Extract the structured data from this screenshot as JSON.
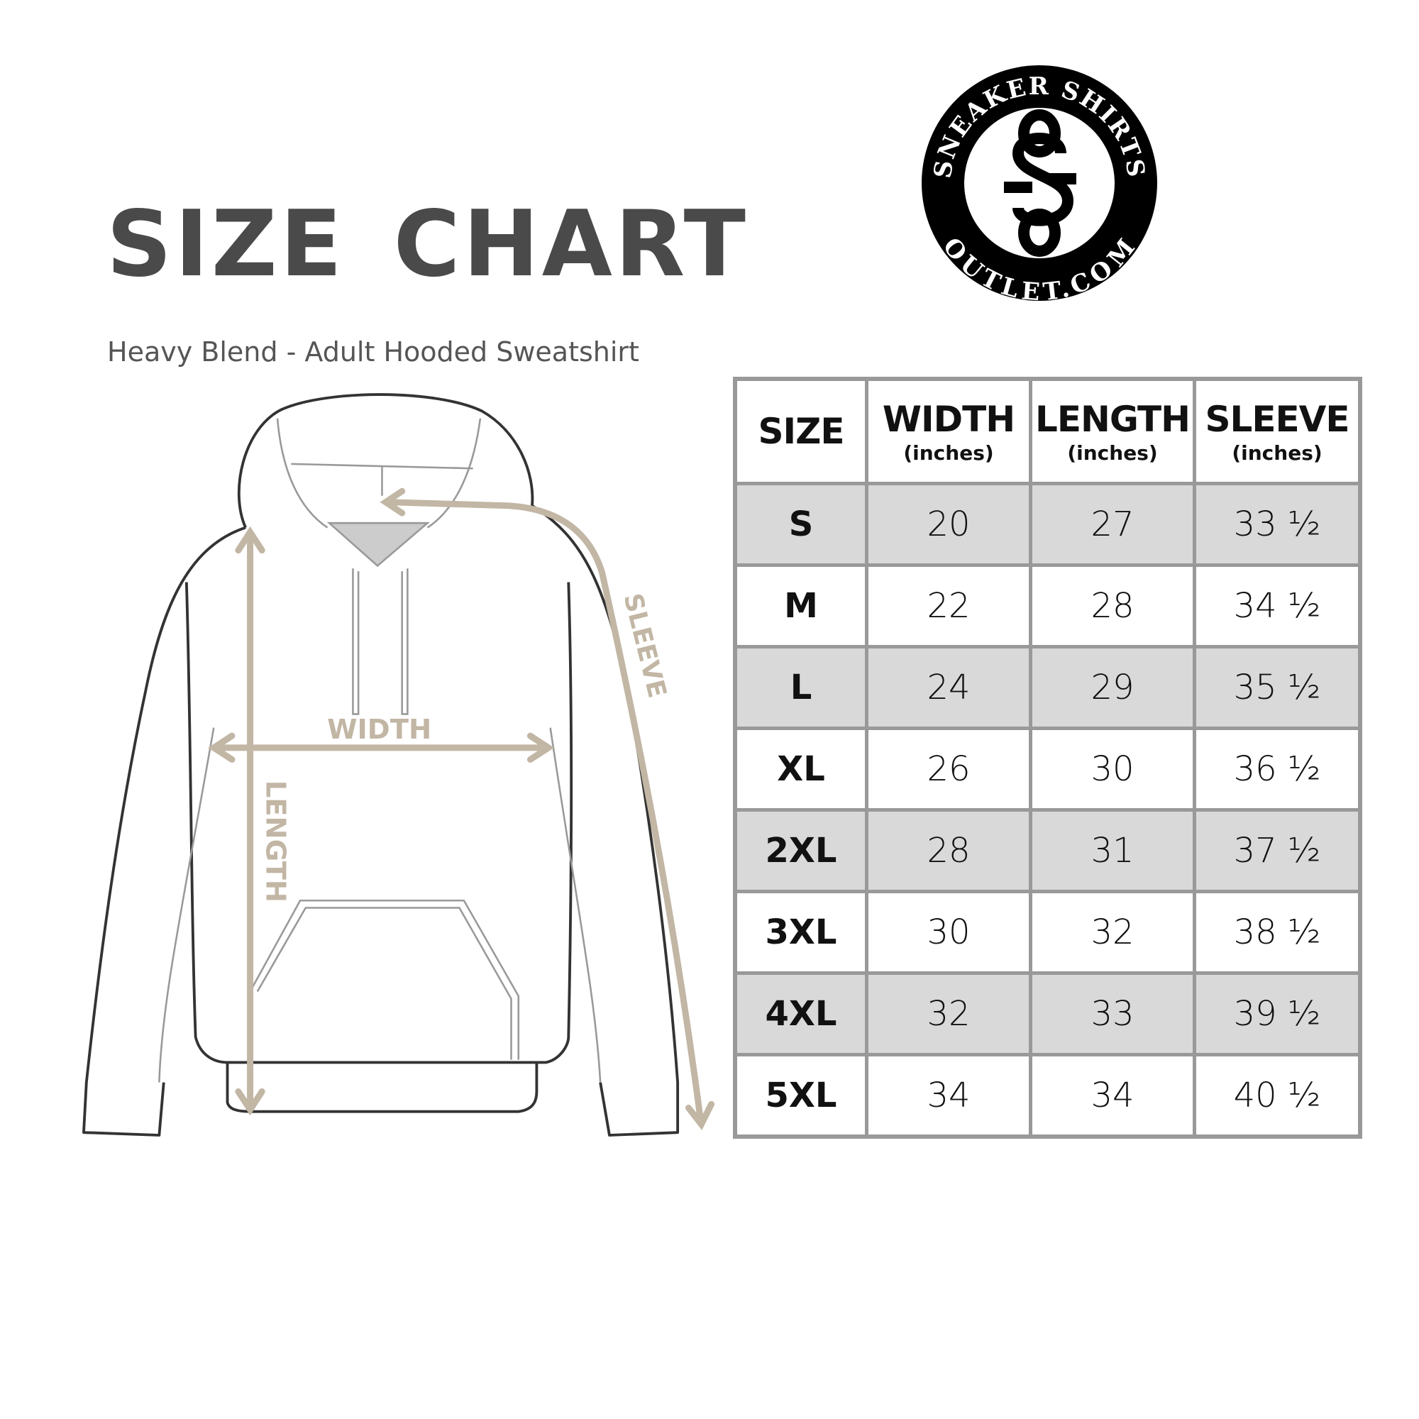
{
  "title": "SIZE CHART",
  "subtitle": "Heavy Blend - Adult Hooded Sweatshirt",
  "logo": {
    "top_text": "SNEAKER SHIRTS",
    "bottom_text": "OUTLET.COM",
    "monogram": "SS"
  },
  "diagram": {
    "width_label": "WIDTH",
    "length_label": "LENGTH",
    "sleeve_label": "SLEEVE",
    "arrow_color": "#c2b6a4"
  },
  "table": {
    "headers": [
      {
        "main": "SIZE",
        "sub": ""
      },
      {
        "main": "WIDTH",
        "sub": "(inches)"
      },
      {
        "main": "LENGTH",
        "sub": "(inches)"
      },
      {
        "main": "SLEEVE",
        "sub": "(inches)"
      }
    ],
    "rows": [
      [
        "S",
        "20",
        "27",
        "33 ½"
      ],
      [
        "M",
        "22",
        "28",
        "34 ½"
      ],
      [
        "L",
        "24",
        "29",
        "35 ½"
      ],
      [
        "XL",
        "26",
        "30",
        "36 ½"
      ],
      [
        "2XL",
        "28",
        "31",
        "37 ½"
      ],
      [
        "3XL",
        "30",
        "32",
        "38 ½"
      ],
      [
        "4XL",
        "32",
        "33",
        "39 ½"
      ],
      [
        "5XL",
        "34",
        "34",
        "40 ½"
      ]
    ],
    "stripe_color": "#d9d9d9",
    "border_color": "#999999"
  }
}
